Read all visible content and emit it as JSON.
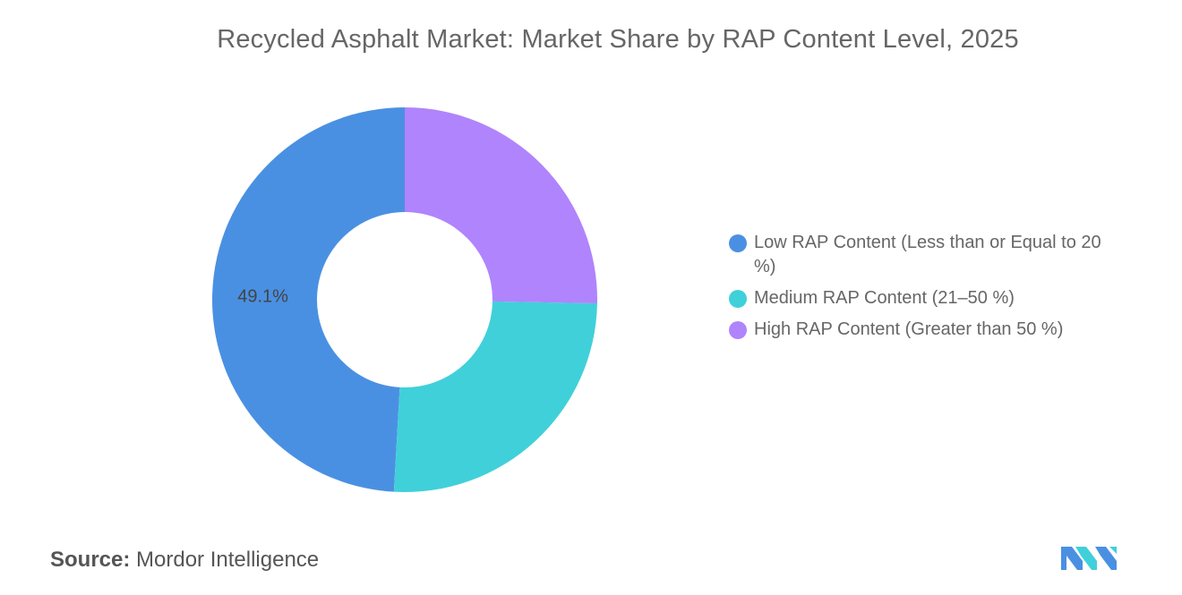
{
  "chart_data": {
    "type": "pie",
    "title": "Recycled Asphalt Market: Market Share by RAP Content Level, 2025",
    "donut": true,
    "slices": [
      {
        "label": "Low RAP Content (Less than or Equal to 20 %)",
        "value": 49.1,
        "color": "#4a90e2",
        "data_label": "49.1%"
      },
      {
        "label": "Medium RAP Content (21–50 %)",
        "value": 25.6,
        "color": "#40d0da",
        "data_label": ""
      },
      {
        "label": "High RAP Content (Greater than 50 %)",
        "value": 25.3,
        "color": "#b084fc",
        "data_label": ""
      }
    ],
    "legend_position": "right"
  },
  "source": {
    "label": "Source:",
    "text": "Mordor Intelligence"
  },
  "logo": {
    "icon": "mordor-intelligence-logo",
    "colors": [
      "#4a90e2",
      "#40d0da"
    ]
  }
}
